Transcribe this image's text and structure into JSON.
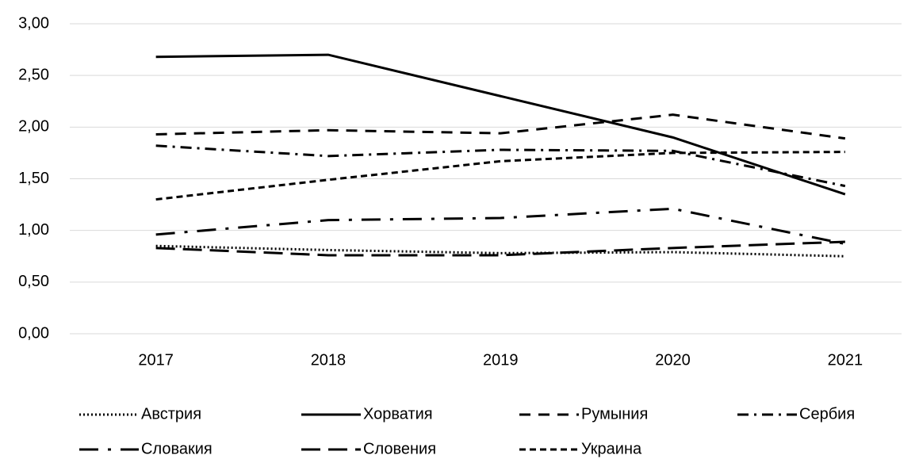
{
  "chart_data": {
    "type": "line",
    "categories": [
      "2017",
      "2018",
      "2019",
      "2020",
      "2021"
    ],
    "series": [
      {
        "name": "Австрия",
        "color": "#000000",
        "dash": "2,3",
        "values": [
          0.85,
          0.81,
          0.78,
          0.79,
          0.75
        ]
      },
      {
        "name": "Хорватия",
        "color": "#000000",
        "dash": "none",
        "values": [
          2.68,
          2.7,
          2.3,
          1.9,
          1.35
        ]
      },
      {
        "name": "Румыния",
        "color": "#000000",
        "dash": "14,10",
        "values": [
          1.93,
          1.97,
          1.94,
          2.12,
          1.89
        ]
      },
      {
        "name": "Сербия",
        "color": "#000000",
        "dash": "14,7,3,7",
        "values": [
          1.82,
          1.72,
          1.78,
          1.77,
          1.43
        ]
      },
      {
        "name": "Словакия",
        "color": "#000000",
        "dash": "24,12,4,12",
        "values": [
          0.96,
          1.1,
          1.12,
          1.21,
          0.87
        ]
      },
      {
        "name": "Словения",
        "color": "#000000",
        "dash": "24,10",
        "values": [
          0.83,
          0.76,
          0.76,
          0.83,
          0.89
        ]
      },
      {
        "name": "Украина",
        "color": "#000000",
        "dash": "8,5",
        "values": [
          1.3,
          1.49,
          1.67,
          1.75,
          1.76
        ]
      }
    ],
    "ylim": [
      0,
      3
    ],
    "yticks": [
      {
        "value": 0,
        "label": "0,00"
      },
      {
        "value": 0.5,
        "label": "0,50"
      },
      {
        "value": 1,
        "label": "1,00"
      },
      {
        "value": 1.5,
        "label": "1,50"
      },
      {
        "value": 2,
        "label": "2,00"
      },
      {
        "value": 2.5,
        "label": "2,50"
      },
      {
        "value": 3,
        "label": "3,00"
      }
    ],
    "grid": true,
    "legend": "bottom"
  }
}
